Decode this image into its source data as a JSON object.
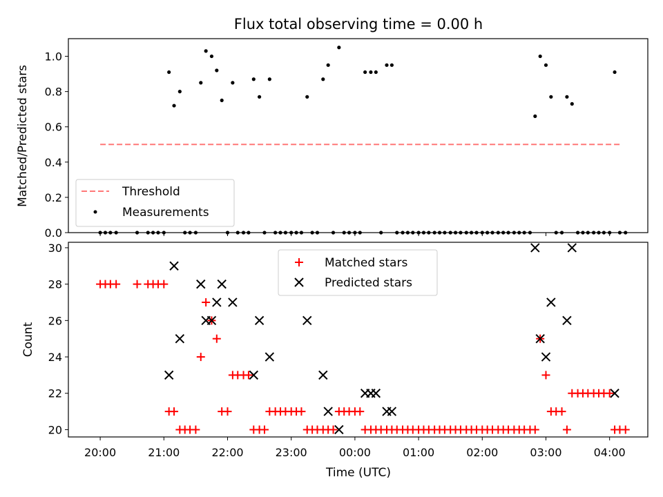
{
  "chart_data": [
    {
      "type": "scatter",
      "title": "Flux total observing time = 0.00 h",
      "ylabel": "Matched/Predicted stars",
      "xlim": [
        -0.5,
        8.6
      ],
      "ylim": [
        0,
        1.1
      ],
      "y_ticks": [
        "0.0",
        "0.2",
        "0.4",
        "0.6",
        "0.8",
        "1.0"
      ],
      "y_tick_values": [
        0,
        0.2,
        0.4,
        0.6,
        0.8,
        1.0
      ],
      "threshold": {
        "name": "Threshold",
        "value": 0.5,
        "x_range": [
          0.0,
          8.2
        ],
        "color": "#ff7777"
      },
      "legend": [
        "Threshold",
        "Measurements"
      ],
      "legend_position": "lower-left",
      "series": [
        {
          "name": "Measurements",
          "color": "#000000",
          "points": [
            [
              0.0,
              0
            ],
            [
              0.08,
              0
            ],
            [
              0.16,
              0
            ],
            [
              0.25,
              0
            ],
            [
              0.58,
              0
            ],
            [
              0.75,
              0
            ],
            [
              0.83,
              0
            ],
            [
              0.91,
              0
            ],
            [
              1.0,
              0
            ],
            [
              1.08,
              0.91
            ],
            [
              1.16,
              0.72
            ],
            [
              1.25,
              0.8
            ],
            [
              1.33,
              0
            ],
            [
              1.41,
              0
            ],
            [
              1.5,
              0
            ],
            [
              1.58,
              0.85
            ],
            [
              1.66,
              1.03
            ],
            [
              1.75,
              1.0
            ],
            [
              1.83,
              0.92
            ],
            [
              1.91,
              0.75
            ],
            [
              2.0,
              0
            ],
            [
              2.08,
              0.85
            ],
            [
              2.16,
              0
            ],
            [
              2.25,
              0
            ],
            [
              2.33,
              0
            ],
            [
              2.41,
              0.87
            ],
            [
              2.5,
              0.77
            ],
            [
              2.58,
              0
            ],
            [
              2.66,
              0.87
            ],
            [
              2.75,
              0
            ],
            [
              2.83,
              0
            ],
            [
              2.91,
              0
            ],
            [
              3.0,
              0
            ],
            [
              3.08,
              0
            ],
            [
              3.16,
              0
            ],
            [
              3.25,
              0.77
            ],
            [
              3.33,
              0
            ],
            [
              3.41,
              0
            ],
            [
              3.5,
              0.87
            ],
            [
              3.58,
              0.95
            ],
            [
              3.66,
              0
            ],
            [
              3.75,
              1.05
            ],
            [
              3.83,
              0
            ],
            [
              3.91,
              0
            ],
            [
              4.0,
              0
            ],
            [
              4.08,
              0
            ],
            [
              4.16,
              0.91
            ],
            [
              4.25,
              0.91
            ],
            [
              4.33,
              0.91
            ],
            [
              4.41,
              0
            ],
            [
              4.5,
              0.95
            ],
            [
              4.58,
              0.95
            ],
            [
              4.66,
              0
            ],
            [
              4.75,
              0
            ],
            [
              4.83,
              0
            ],
            [
              4.91,
              0
            ],
            [
              5.0,
              0
            ],
            [
              5.08,
              0
            ],
            [
              5.16,
              0
            ],
            [
              5.25,
              0
            ],
            [
              5.33,
              0
            ],
            [
              5.41,
              0
            ],
            [
              5.5,
              0
            ],
            [
              5.58,
              0
            ],
            [
              5.66,
              0
            ],
            [
              5.75,
              0
            ],
            [
              5.83,
              0
            ],
            [
              5.91,
              0
            ],
            [
              6.0,
              0
            ],
            [
              6.08,
              0
            ],
            [
              6.16,
              0
            ],
            [
              6.25,
              0
            ],
            [
              6.33,
              0
            ],
            [
              6.41,
              0
            ],
            [
              6.5,
              0
            ],
            [
              6.58,
              0
            ],
            [
              6.66,
              0
            ],
            [
              6.75,
              0
            ],
            [
              6.83,
              0.66
            ],
            [
              6.91,
              1.0
            ],
            [
              7.0,
              0.95
            ],
            [
              7.08,
              0.77
            ],
            [
              7.16,
              0
            ],
            [
              7.25,
              0
            ],
            [
              7.33,
              0.77
            ],
            [
              7.41,
              0.73
            ],
            [
              7.5,
              0
            ],
            [
              7.58,
              0
            ],
            [
              7.66,
              0
            ],
            [
              7.75,
              0
            ],
            [
              7.83,
              0
            ],
            [
              7.91,
              0
            ],
            [
              8.0,
              0
            ],
            [
              8.08,
              0.91
            ],
            [
              8.16,
              0
            ],
            [
              8.25,
              0
            ]
          ]
        }
      ]
    },
    {
      "type": "scatter",
      "xlabel": "Time (UTC)",
      "ylabel": "Count",
      "xlim": [
        -0.5,
        8.6
      ],
      "ylim": [
        19.6,
        30.3
      ],
      "x_tick_values": [
        0,
        1,
        2,
        3,
        4,
        5,
        6,
        7,
        8
      ],
      "x_ticks": [
        "20:00",
        "21:00",
        "22:00",
        "23:00",
        "00:00",
        "01:00",
        "02:00",
        "03:00",
        "04:00"
      ],
      "y_tick_values": [
        20,
        22,
        24,
        26,
        28,
        30
      ],
      "y_ticks": [
        "20",
        "22",
        "24",
        "26",
        "28",
        "30"
      ],
      "legend": [
        "Matched stars",
        "Predicted stars"
      ],
      "legend_position": "upper-center",
      "series": [
        {
          "name": "Matched stars",
          "marker": "+",
          "color": "#ff0000",
          "points": [
            [
              0.0,
              28
            ],
            [
              0.08,
              28
            ],
            [
              0.16,
              28
            ],
            [
              0.25,
              28
            ],
            [
              0.58,
              28
            ],
            [
              0.75,
              28
            ],
            [
              0.83,
              28
            ],
            [
              0.91,
              28
            ],
            [
              1.0,
              28
            ],
            [
              1.08,
              21
            ],
            [
              1.16,
              21
            ],
            [
              1.25,
              20
            ],
            [
              1.33,
              20
            ],
            [
              1.41,
              20
            ],
            [
              1.5,
              20
            ],
            [
              1.58,
              24
            ],
            [
              1.66,
              27
            ],
            [
              1.75,
              26
            ],
            [
              1.83,
              25
            ],
            [
              1.91,
              21
            ],
            [
              2.0,
              21
            ],
            [
              2.08,
              23
            ],
            [
              2.16,
              23
            ],
            [
              2.25,
              23
            ],
            [
              2.33,
              23
            ],
            [
              2.41,
              20
            ],
            [
              2.5,
              20
            ],
            [
              2.58,
              20
            ],
            [
              2.66,
              21
            ],
            [
              2.75,
              21
            ],
            [
              2.83,
              21
            ],
            [
              2.91,
              21
            ],
            [
              3.0,
              21
            ],
            [
              3.08,
              21
            ],
            [
              3.16,
              21
            ],
            [
              3.25,
              20
            ],
            [
              3.33,
              20
            ],
            [
              3.41,
              20
            ],
            [
              3.5,
              20
            ],
            [
              3.58,
              20
            ],
            [
              3.66,
              20
            ],
            [
              3.75,
              21
            ],
            [
              3.83,
              21
            ],
            [
              3.91,
              21
            ],
            [
              4.0,
              21
            ],
            [
              4.08,
              21
            ],
            [
              4.16,
              20
            ],
            [
              4.25,
              20
            ],
            [
              4.33,
              20
            ],
            [
              4.41,
              20
            ],
            [
              4.5,
              20
            ],
            [
              4.58,
              20
            ],
            [
              4.66,
              20
            ],
            [
              4.75,
              20
            ],
            [
              4.83,
              20
            ],
            [
              4.91,
              20
            ],
            [
              5.0,
              20
            ],
            [
              5.08,
              20
            ],
            [
              5.16,
              20
            ],
            [
              5.25,
              20
            ],
            [
              5.33,
              20
            ],
            [
              5.41,
              20
            ],
            [
              5.5,
              20
            ],
            [
              5.58,
              20
            ],
            [
              5.66,
              20
            ],
            [
              5.75,
              20
            ],
            [
              5.83,
              20
            ],
            [
              5.91,
              20
            ],
            [
              6.0,
              20
            ],
            [
              6.08,
              20
            ],
            [
              6.16,
              20
            ],
            [
              6.25,
              20
            ],
            [
              6.33,
              20
            ],
            [
              6.41,
              20
            ],
            [
              6.5,
              20
            ],
            [
              6.58,
              20
            ],
            [
              6.66,
              20
            ],
            [
              6.75,
              20
            ],
            [
              6.83,
              20
            ],
            [
              6.91,
              25
            ],
            [
              7.0,
              23
            ],
            [
              7.08,
              21
            ],
            [
              7.16,
              21
            ],
            [
              7.25,
              21
            ],
            [
              7.33,
              20
            ],
            [
              7.41,
              22
            ],
            [
              7.5,
              22
            ],
            [
              7.58,
              22
            ],
            [
              7.66,
              22
            ],
            [
              7.75,
              22
            ],
            [
              7.83,
              22
            ],
            [
              7.91,
              22
            ],
            [
              8.0,
              22
            ],
            [
              8.08,
              20
            ],
            [
              8.16,
              20
            ],
            [
              8.25,
              20
            ]
          ]
        },
        {
          "name": "Predicted stars",
          "marker": "x",
          "color": "#000000",
          "points": [
            [
              1.08,
              23
            ],
            [
              1.16,
              29
            ],
            [
              1.25,
              25
            ],
            [
              1.58,
              28
            ],
            [
              1.66,
              26
            ],
            [
              1.75,
              26
            ],
            [
              1.83,
              27
            ],
            [
              1.91,
              28
            ],
            [
              2.08,
              27
            ],
            [
              2.41,
              23
            ],
            [
              2.5,
              26
            ],
            [
              2.66,
              24
            ],
            [
              3.25,
              26
            ],
            [
              3.5,
              23
            ],
            [
              3.58,
              21
            ],
            [
              3.75,
              20
            ],
            [
              4.16,
              22
            ],
            [
              4.25,
              22
            ],
            [
              4.33,
              22
            ],
            [
              4.5,
              21
            ],
            [
              4.58,
              21
            ],
            [
              6.83,
              30
            ],
            [
              6.91,
              25
            ],
            [
              7.0,
              24
            ],
            [
              7.08,
              27
            ],
            [
              7.33,
              26
            ],
            [
              7.41,
              30
            ],
            [
              8.08,
              22
            ]
          ]
        }
      ]
    }
  ]
}
